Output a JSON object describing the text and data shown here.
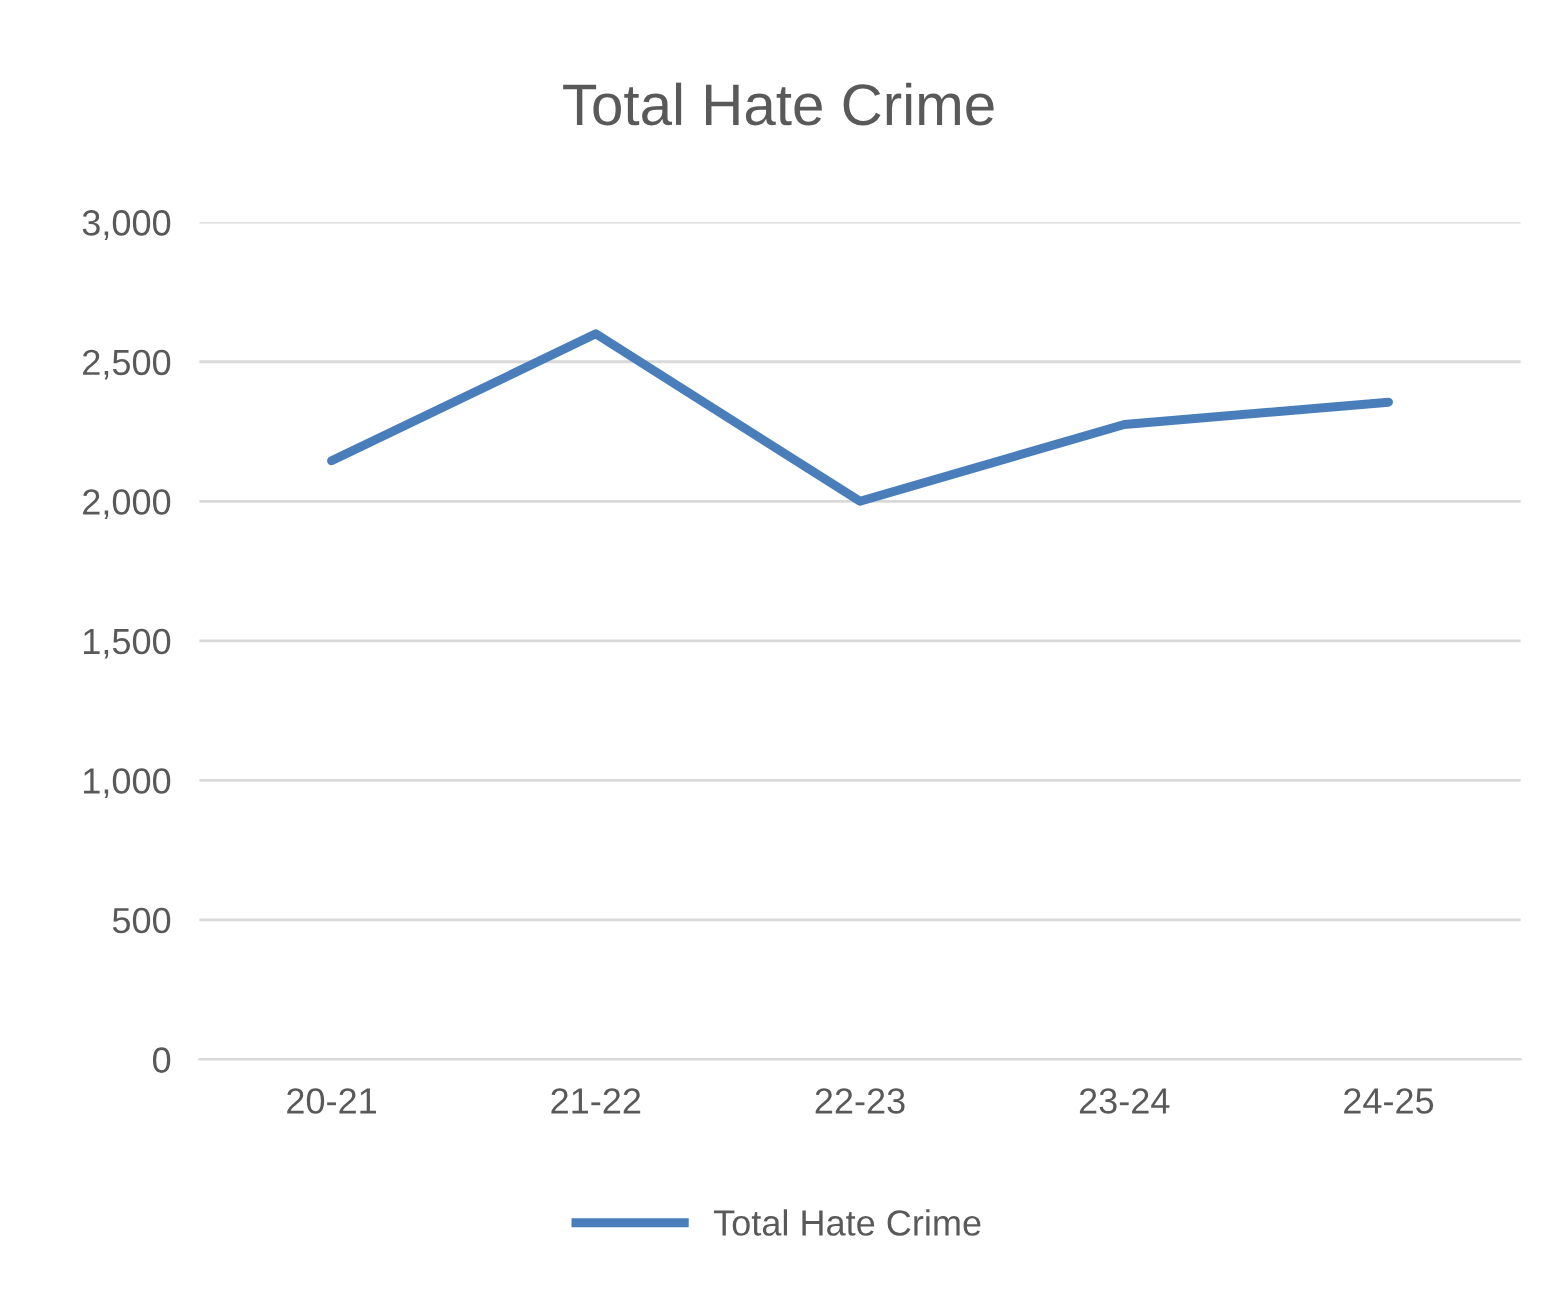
{
  "chart_data": {
    "type": "line",
    "title": "Total Hate Crime",
    "categories": [
      "20-21",
      "21-22",
      "22-23",
      "23-24",
      "24-25"
    ],
    "series": [
      {
        "name": "Total Hate Crime",
        "color": "#4a7ebb",
        "values": [
          2145,
          2600,
          2000,
          2275,
          2355
        ]
      }
    ],
    "ylim": [
      0,
      3000
    ],
    "yticks": [
      {
        "value": 0,
        "label": "0"
      },
      {
        "value": 500,
        "label": "500"
      },
      {
        "value": 1000,
        "label": "1,000"
      },
      {
        "value": 1500,
        "label": "1,500"
      },
      {
        "value": 2000,
        "label": "2,000"
      },
      {
        "value": 2500,
        "label": "2,500"
      },
      {
        "value": 3000,
        "label": "3,000"
      }
    ],
    "grid": "y",
    "legend": "bottom",
    "marker": "none",
    "line_style": "solid"
  }
}
